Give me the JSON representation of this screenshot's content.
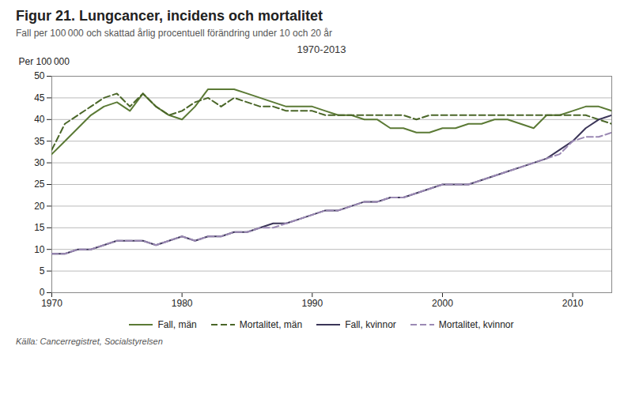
{
  "chart_data": {
    "type": "line",
    "title": "Figur 21. Lungcancer, incidens och mortalitet",
    "subtitle": "Fall per 100 000 och skattad  årlig procentuell förändring under 10 och 20 år",
    "ylabel": "Per 100 000",
    "annotations": [
      "1970-2013"
    ],
    "source": "Källa: Cancerregistret, Socialstyrelsen",
    "x": [
      1970,
      1971,
      1972,
      1973,
      1974,
      1975,
      1976,
      1977,
      1978,
      1979,
      1980,
      1981,
      1982,
      1983,
      1984,
      1985,
      1986,
      1987,
      1988,
      1989,
      1990,
      1991,
      1992,
      1993,
      1994,
      1995,
      1996,
      1997,
      1998,
      1999,
      2000,
      2001,
      2002,
      2003,
      2004,
      2005,
      2006,
      2007,
      2008,
      2009,
      2010,
      2011,
      2012,
      2013
    ],
    "series": [
      {
        "name": "Fall, män",
        "color": "#5b7a35",
        "line_style": "solid",
        "values": [
          32,
          35,
          38,
          41,
          43,
          44,
          42,
          46,
          43,
          41,
          40,
          43,
          47,
          47,
          47,
          46,
          45,
          44,
          43,
          43,
          43,
          42,
          41,
          41,
          40,
          40,
          38,
          38,
          37,
          37,
          38,
          38,
          39,
          39,
          40,
          40,
          39,
          38,
          41,
          41,
          42,
          43,
          43,
          42
        ]
      },
      {
        "name": "Mortalitet, män",
        "color": "#4a6628",
        "line_style": "dashed",
        "values": [
          33,
          39,
          41,
          43,
          45,
          46,
          43,
          46,
          43,
          41,
          42,
          44,
          45,
          43,
          45,
          44,
          43,
          43,
          42,
          42,
          42,
          41,
          41,
          41,
          41,
          41,
          41,
          41,
          40,
          41,
          41,
          41,
          41,
          41,
          41,
          41,
          41,
          41,
          41,
          41,
          41,
          41,
          40,
          39
        ]
      },
      {
        "name": "Fall, kvinnor",
        "color": "#3b3558",
        "line_style": "solid",
        "values": [
          9,
          9,
          10,
          10,
          11,
          12,
          12,
          12,
          11,
          12,
          13,
          12,
          13,
          13,
          14,
          14,
          15,
          16,
          16,
          17,
          18,
          19,
          19,
          20,
          21,
          21,
          22,
          22,
          23,
          24,
          25,
          25,
          25,
          26,
          27,
          28,
          29,
          30,
          31,
          33,
          35,
          38,
          40,
          41
        ]
      },
      {
        "name": "Mortalitet, kvinnor",
        "color": "#9b89b4",
        "line_style": "dashed",
        "values": [
          9,
          9,
          10,
          10,
          11,
          12,
          12,
          12,
          11,
          12,
          13,
          12,
          13,
          13,
          14,
          14,
          15,
          15,
          16,
          17,
          18,
          19,
          19,
          20,
          21,
          21,
          22,
          22,
          23,
          24,
          25,
          25,
          25,
          26,
          27,
          28,
          29,
          30,
          31,
          32,
          35,
          36,
          36,
          37
        ]
      }
    ],
    "xlim": [
      1970,
      2013
    ],
    "xticks": [
      1970,
      1980,
      1990,
      2000,
      2010
    ],
    "ylim": [
      0,
      50
    ],
    "yticks": [
      0,
      5,
      10,
      15,
      20,
      25,
      30,
      35,
      40,
      45,
      50
    ],
    "grid": true,
    "legend": "bottom"
  }
}
